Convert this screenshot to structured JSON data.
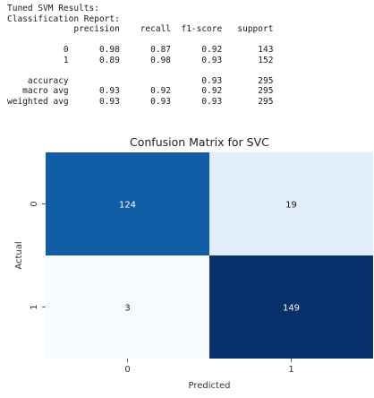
{
  "report": {
    "heading_1": "Tuned SVM Results:",
    "heading_2": "Classification Report:",
    "columns": [
      "precision",
      "recall",
      "f1-score",
      "support"
    ],
    "rows": [
      {
        "label": "0",
        "values": [
          "0.98",
          "0.87",
          "0.92",
          "143"
        ]
      },
      {
        "label": "1",
        "values": [
          "0.89",
          "0.98",
          "0.93",
          "152"
        ]
      },
      {
        "label": "",
        "values": [
          "",
          "",
          "",
          ""
        ]
      },
      {
        "label": "accuracy",
        "values": [
          "",
          "",
          "0.93",
          "295"
        ]
      },
      {
        "label": "macro avg",
        "values": [
          "0.93",
          "0.92",
          "0.92",
          "295"
        ]
      },
      {
        "label": "weighted avg",
        "values": [
          "0.93",
          "0.93",
          "0.93",
          "295"
        ]
      }
    ]
  },
  "chart_data": {
    "type": "heatmap",
    "title": "Confusion Matrix for SVC",
    "xlabel": "Predicted",
    "ylabel": "Actual",
    "x_categories": [
      "0",
      "1"
    ],
    "y_categories": [
      "0",
      "1"
    ],
    "values": [
      [
        124,
        19
      ],
      [
        3,
        149
      ]
    ],
    "colormap": "Blues",
    "colors": {
      "low": "#f7fbff",
      "high": "#08306b",
      "dark_text": "#1a1a1a",
      "light_text": "#ffffff"
    }
  }
}
